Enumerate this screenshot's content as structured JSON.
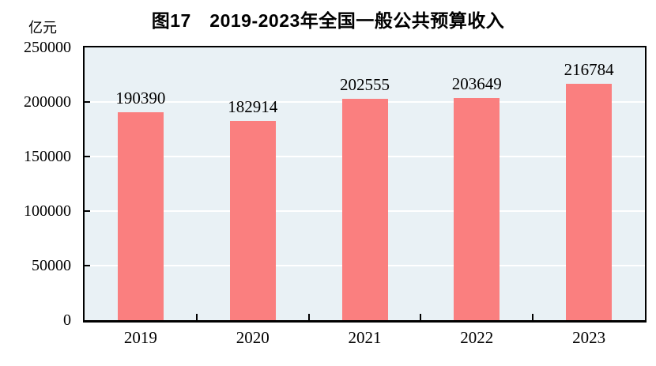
{
  "page": {
    "background": "#FFFFFF"
  },
  "chart_data": {
    "type": "bar",
    "title": "图17　2019-2023年全国一般公共预算收入",
    "unit": "亿元",
    "categories": [
      "2019",
      "2020",
      "2021",
      "2022",
      "2023"
    ],
    "values": [
      190390,
      182914,
      202555,
      203649,
      216784
    ],
    "value_labels": [
      "190390",
      "182914",
      "202555",
      "203649",
      "216784"
    ],
    "xlabel": "",
    "ylabel": "亿元",
    "ylim": [
      0,
      250000
    ],
    "ytick_step": 50000,
    "yticks": [
      250000,
      200000,
      150000,
      100000,
      50000,
      0
    ],
    "grid": true,
    "legend_position": "none",
    "colors": {
      "bar": "#FA7F7F",
      "plot_background": "#E9F1F5",
      "gridline": "#FFFFFF",
      "axis": "#000000",
      "text": "#000000"
    }
  }
}
